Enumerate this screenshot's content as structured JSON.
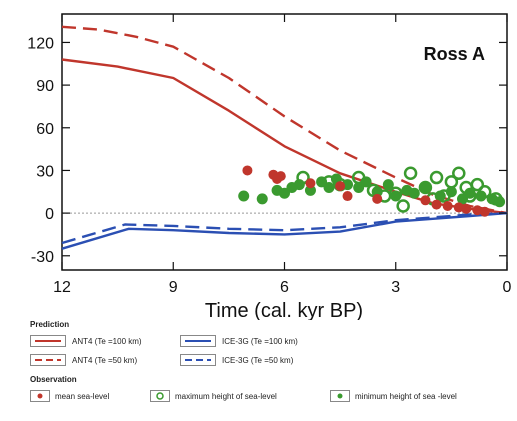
{
  "chart_data": {
    "type": "line",
    "title": "Ross A",
    "xlabel": "Time (cal. kyr BP)",
    "ylabel": "",
    "xlim": [
      12,
      0
    ],
    "ylim": [
      -40,
      140
    ],
    "x_reversed": true,
    "x_ticks": [
      "12",
      "9",
      "6",
      "3",
      "0"
    ],
    "y_ticks": [
      "120",
      "90",
      "60",
      "30",
      "0",
      "-30"
    ],
    "zero_line": true,
    "series": [
      {
        "name": "ANT4 (Te =100 km)",
        "color": "#c0362c",
        "dash": "solid",
        "points": [
          [
            12,
            108
          ],
          [
            10.5,
            103
          ],
          [
            9.0,
            95
          ],
          [
            7.5,
            72
          ],
          [
            6.0,
            47
          ],
          [
            4.5,
            28
          ],
          [
            3.0,
            15
          ],
          [
            2.0,
            7
          ],
          [
            1.0,
            3
          ],
          [
            0,
            0
          ]
        ]
      },
      {
        "name": "ANT4 (Te =50 km)",
        "color": "#c0362c",
        "dash": "dashed",
        "points": [
          [
            12,
            131
          ],
          [
            11.0,
            129
          ],
          [
            10.0,
            124
          ],
          [
            9.0,
            117
          ],
          [
            7.5,
            95
          ],
          [
            6.0,
            68
          ],
          [
            4.5,
            44
          ],
          [
            3.0,
            25
          ],
          [
            2.0,
            13
          ],
          [
            1.0,
            5
          ],
          [
            0,
            0
          ]
        ]
      },
      {
        "name": "ICE-3G (Te =100 km)",
        "color": "#2b4fb3",
        "dash": "solid",
        "points": [
          [
            12,
            -25
          ],
          [
            10.2,
            -11
          ],
          [
            9.0,
            -12
          ],
          [
            7.5,
            -14
          ],
          [
            6.0,
            -15
          ],
          [
            4.5,
            -13
          ],
          [
            3.0,
            -6
          ],
          [
            2.0,
            -4
          ],
          [
            1.0,
            -2
          ],
          [
            0,
            0
          ]
        ]
      },
      {
        "name": "ICE-3G (Te =50 km)",
        "color": "#2b4fb3",
        "dash": "dashed",
        "points": [
          [
            12,
            -21
          ],
          [
            10.3,
            -8
          ],
          [
            9.0,
            -9
          ],
          [
            7.5,
            -11
          ],
          [
            6.0,
            -12
          ],
          [
            4.5,
            -10
          ],
          [
            3.0,
            -5
          ],
          [
            2.0,
            -3
          ],
          [
            1.0,
            -1
          ],
          [
            0,
            0
          ]
        ]
      }
    ],
    "observations": {
      "mean": [
        [
          7.0,
          30
        ],
        [
          6.3,
          27
        ],
        [
          6.2,
          24
        ],
        [
          6.1,
          26
        ],
        [
          5.3,
          21
        ],
        [
          4.5,
          19
        ],
        [
          4.3,
          12
        ],
        [
          3.5,
          10
        ],
        [
          2.2,
          9
        ],
        [
          1.9,
          6
        ],
        [
          1.6,
          5
        ],
        [
          1.3,
          4
        ],
        [
          1.1,
          3
        ],
        [
          0.8,
          2
        ],
        [
          0.6,
          1
        ]
      ],
      "maximum": [
        [
          5.5,
          25
        ],
        [
          4.8,
          22
        ],
        [
          4.5,
          20
        ],
        [
          4.0,
          25
        ],
        [
          3.6,
          16
        ],
        [
          3.3,
          12
        ],
        [
          3.0,
          14
        ],
        [
          2.6,
          28
        ],
        [
          2.2,
          18
        ],
        [
          2.0,
          10
        ],
        [
          1.9,
          25
        ],
        [
          1.5,
          22
        ],
        [
          1.3,
          28
        ],
        [
          1.1,
          18
        ],
        [
          1.0,
          12
        ],
        [
          0.8,
          20
        ],
        [
          0.6,
          15
        ],
        [
          0.3,
          10
        ],
        [
          2.8,
          5
        ],
        [
          1.7,
          12
        ]
      ],
      "minimum": [
        [
          7.1,
          12
        ],
        [
          6.6,
          10
        ],
        [
          6.2,
          16
        ],
        [
          6.0,
          14
        ],
        [
          5.8,
          18
        ],
        [
          5.6,
          20
        ],
        [
          5.3,
          16
        ],
        [
          5.0,
          22
        ],
        [
          4.8,
          18
        ],
        [
          4.6,
          24
        ],
        [
          4.3,
          20
        ],
        [
          4.0,
          18
        ],
        [
          3.8,
          22
        ],
        [
          3.5,
          15
        ],
        [
          3.2,
          20
        ],
        [
          3.0,
          12
        ],
        [
          2.7,
          16
        ],
        [
          2.5,
          14
        ],
        [
          2.2,
          18
        ],
        [
          1.8,
          12
        ],
        [
          1.5,
          15
        ],
        [
          1.2,
          10
        ],
        [
          1.0,
          14
        ],
        [
          0.7,
          12
        ],
        [
          0.4,
          10
        ],
        [
          0.2,
          8
        ]
      ]
    },
    "observation_colors": {
      "mean": "#c0362c",
      "maximum": "#3a9a2f",
      "minimum": "#3a9a2f"
    }
  },
  "legend": {
    "prediction_heading": "Prediction",
    "observation_heading": "Observation",
    "ant4_100": "ANT4 (Te =100 km)",
    "ant4_50": "ANT4 (Te =50 km)",
    "ice3g_100": "ICE-3G (Te =100 km)",
    "ice3g_50": "ICE-3G (Te =50 km)",
    "mean": "mean sea-level",
    "maximum": "maximum height of sea-level",
    "minimum": "minimum height of sea -level"
  }
}
